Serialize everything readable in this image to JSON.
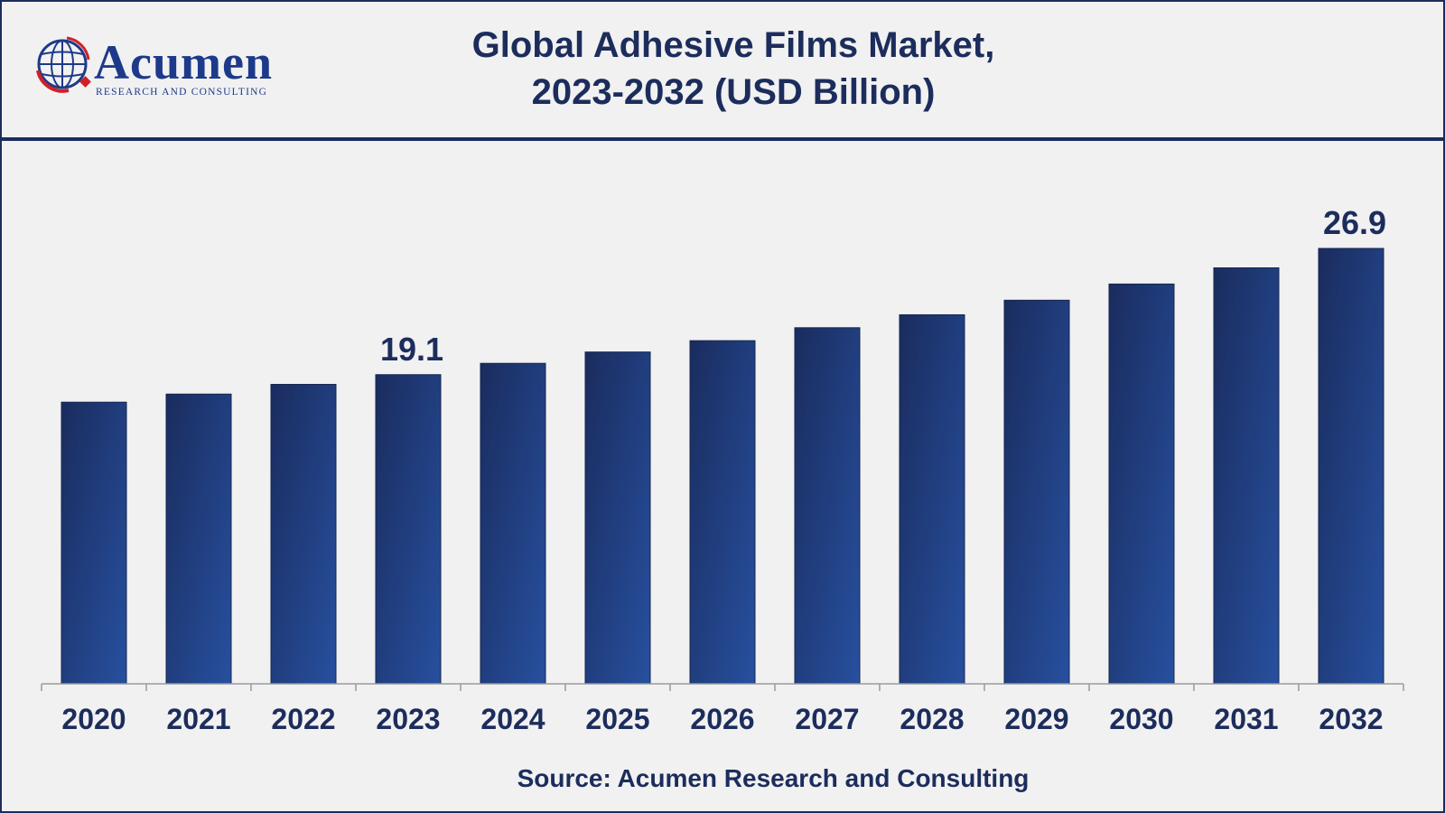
{
  "header": {
    "logo": {
      "name": "Acumen",
      "tagline": "Research and Consulting",
      "icon": "globe-icon"
    },
    "title_line1": "Global Adhesive Films Market,",
    "title_line2": "2023-2032 (USD Billion)"
  },
  "colors": {
    "bar_dark": "#1a2c5e",
    "bar_light": "#27509f",
    "text": "#1c2d5c",
    "accent_red": "#d31f26"
  },
  "chart_data": {
    "type": "bar",
    "title": "Global Adhesive Films Market, 2023-2032 (USD Billion)",
    "categories": [
      "2020",
      "2021",
      "2022",
      "2023",
      "2024",
      "2025",
      "2026",
      "2027",
      "2028",
      "2029",
      "2030",
      "2031",
      "2032"
    ],
    "values": [
      17.4,
      17.9,
      18.5,
      19.1,
      19.8,
      20.5,
      21.2,
      22.0,
      22.8,
      23.7,
      24.7,
      25.7,
      26.9
    ],
    "data_labels": [
      {
        "category": "2023",
        "text": "19.1"
      },
      {
        "category": "2032",
        "text": "26.9"
      }
    ],
    "xlabel": "",
    "ylabel": "",
    "ylim": [
      0,
      30
    ],
    "grid": false,
    "legend": "none"
  },
  "footer": {
    "source": "Source: Acumen Research and Consulting"
  }
}
